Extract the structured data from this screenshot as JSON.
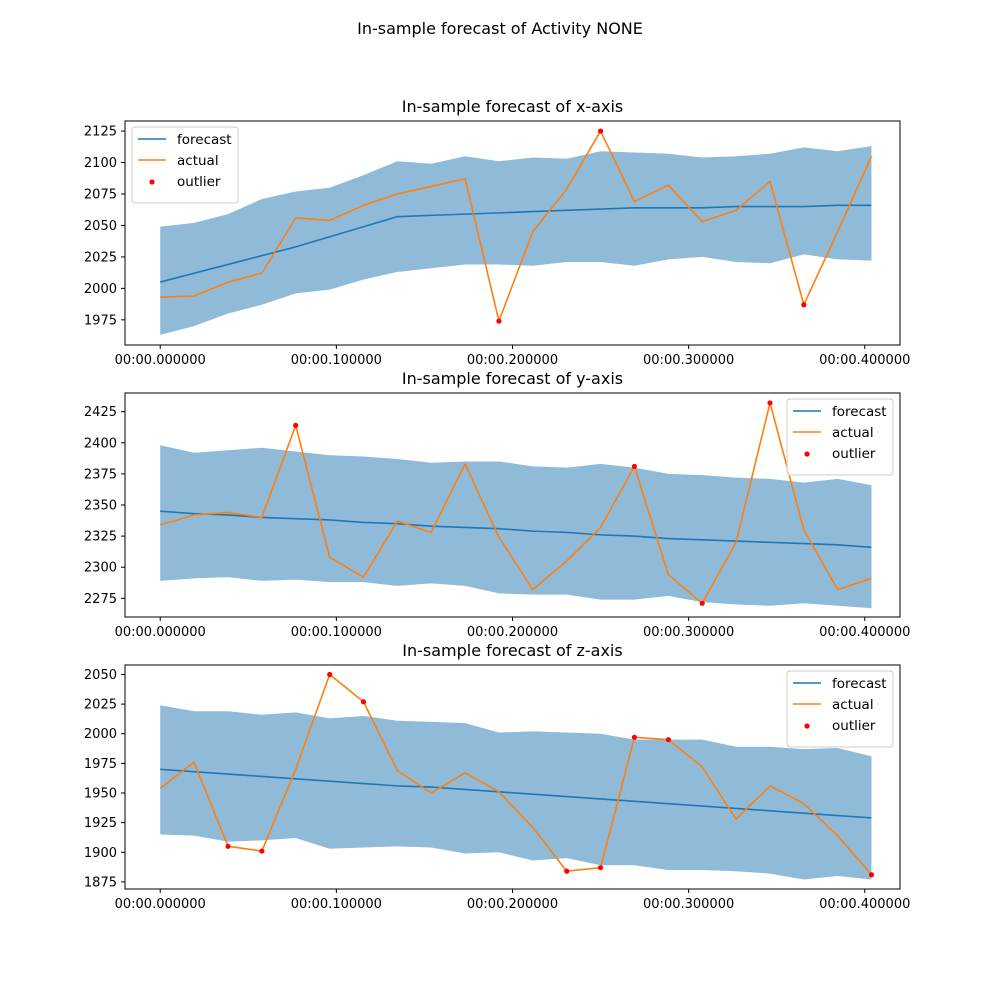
{
  "figure": {
    "title": "In-sample forecast of Activity NONE"
  },
  "colors": {
    "forecast": "#1f77b4",
    "actual": "#ff7f0e",
    "band": "#1f77b4",
    "outlier": "#ff0000"
  },
  "chart_data": [
    {
      "type": "line",
      "title": "In-sample forecast of x-axis",
      "xlabel": "",
      "ylabel": "",
      "legend": "top-left",
      "grid": false,
      "xlim": [
        -0.02,
        0.42
      ],
      "ylim": [
        1955,
        2133
      ],
      "xticks": [
        0.0,
        0.1,
        0.2,
        0.3,
        0.4
      ],
      "xtick_labels": [
        "00:00.000000",
        "00:00.100000",
        "00:00.200000",
        "00:00.300000",
        "00:00.400000"
      ],
      "yticks": [
        1975,
        2000,
        2025,
        2050,
        2075,
        2100,
        2125
      ],
      "ytick_labels": [
        "1975",
        "2000",
        "2025",
        "2050",
        "2075",
        "2100",
        "2125"
      ],
      "x": [
        0.0,
        0.0192,
        0.0385,
        0.0577,
        0.0769,
        0.0962,
        0.1154,
        0.1346,
        0.1538,
        0.1731,
        0.1923,
        0.2115,
        0.2308,
        0.25,
        0.2692,
        0.2885,
        0.3077,
        0.3269,
        0.3462,
        0.3654,
        0.3846,
        0.4038
      ],
      "series": [
        {
          "name": "forecast",
          "kind": "line",
          "values": [
            2005,
            2012,
            2019,
            2026,
            2033,
            2041,
            2049,
            2057,
            2058,
            2059,
            2060,
            2061,
            2062,
            2063,
            2064,
            2064,
            2064,
            2065,
            2065,
            2065,
            2066,
            2066
          ]
        },
        {
          "name": "actual",
          "kind": "line",
          "values": [
            1993,
            1994,
            2005,
            2012,
            2056,
            2054,
            2066,
            2075,
            2081,
            2087,
            1974,
            2045,
            2079,
            2125,
            2069,
            2082,
            2053,
            2062,
            2085,
            1987,
            2045,
            2105
          ]
        },
        {
          "name": "outlier",
          "kind": "scatter",
          "x": [
            0.1923,
            0.25,
            0.3654
          ],
          "values": [
            1974,
            2125,
            1987
          ]
        }
      ],
      "band": {
        "lower": [
          1963,
          1970,
          1980,
          1987,
          1996,
          1999,
          2007,
          2013,
          2016,
          2019,
          2019,
          2018,
          2021,
          2021,
          2018,
          2023,
          2025,
          2021,
          2020,
          2027,
          2023,
          2022
        ],
        "upper": [
          2049,
          2052,
          2059,
          2071,
          2077,
          2080,
          2090,
          2101,
          2099,
          2105,
          2101,
          2104,
          2103,
          2109,
          2108,
          2107,
          2104,
          2105,
          2107,
          2112,
          2109,
          2113
        ]
      }
    },
    {
      "type": "line",
      "title": "In-sample forecast of y-axis",
      "xlabel": "",
      "ylabel": "",
      "legend": "top-right",
      "grid": false,
      "xlim": [
        -0.02,
        0.42
      ],
      "ylim": [
        2260,
        2440
      ],
      "xticks": [
        0.0,
        0.1,
        0.2,
        0.3,
        0.4
      ],
      "xtick_labels": [
        "00:00.000000",
        "00:00.100000",
        "00:00.200000",
        "00:00.300000",
        "00:00.400000"
      ],
      "yticks": [
        2275,
        2300,
        2325,
        2350,
        2375,
        2400,
        2425
      ],
      "ytick_labels": [
        "2275",
        "2300",
        "2325",
        "2350",
        "2375",
        "2400",
        "2425"
      ],
      "x": [
        0.0,
        0.0192,
        0.0385,
        0.0577,
        0.0769,
        0.0962,
        0.1154,
        0.1346,
        0.1538,
        0.1731,
        0.1923,
        0.2115,
        0.2308,
        0.25,
        0.2692,
        0.2885,
        0.3077,
        0.3269,
        0.3462,
        0.3654,
        0.3846,
        0.4038
      ],
      "series": [
        {
          "name": "forecast",
          "kind": "line",
          "values": [
            2345,
            2343,
            2342,
            2340,
            2339,
            2338,
            2336,
            2335,
            2333,
            2332,
            2331,
            2329,
            2328,
            2326,
            2325,
            2323,
            2322,
            2321,
            2320,
            2319,
            2318,
            2316
          ]
        },
        {
          "name": "actual",
          "kind": "line",
          "values": [
            2334,
            2342,
            2344,
            2340,
            2414,
            2308,
            2292,
            2337,
            2328,
            2383,
            2324,
            2282,
            2305,
            2332,
            2381,
            2294,
            2271,
            2320,
            2432,
            2330,
            2282,
            2291
          ]
        },
        {
          "name": "outlier",
          "kind": "scatter",
          "x": [
            0.0769,
            0.2692,
            0.3077,
            0.3462
          ],
          "values": [
            2414,
            2381,
            2271,
            2432
          ]
        }
      ],
      "band": {
        "lower": [
          2289,
          2291,
          2292,
          2289,
          2290,
          2288,
          2288,
          2285,
          2287,
          2285,
          2279,
          2278,
          2278,
          2274,
          2274,
          2277,
          2272,
          2270,
          2269,
          2271,
          2269,
          2267
        ],
        "upper": [
          2398,
          2392,
          2394,
          2396,
          2393,
          2390,
          2389,
          2387,
          2384,
          2385,
          2385,
          2381,
          2380,
          2383,
          2380,
          2375,
          2374,
          2372,
          2371,
          2368,
          2371,
          2366
        ]
      }
    },
    {
      "type": "line",
      "title": "In-sample forecast of z-axis",
      "xlabel": "",
      "ylabel": "",
      "legend": "top-right",
      "grid": false,
      "xlim": [
        -0.02,
        0.42
      ],
      "ylim": [
        1869,
        2058
      ],
      "xticks": [
        0.0,
        0.1,
        0.2,
        0.3,
        0.4
      ],
      "xtick_labels": [
        "00:00.000000",
        "00:00.100000",
        "00:00.200000",
        "00:00.300000",
        "00:00.400000"
      ],
      "yticks": [
        1875,
        1900,
        1925,
        1950,
        1975,
        2000,
        2025,
        2050
      ],
      "ytick_labels": [
        "1875",
        "1900",
        "1925",
        "1950",
        "1975",
        "2000",
        "2025",
        "2050"
      ],
      "x": [
        0.0,
        0.0192,
        0.0385,
        0.0577,
        0.0769,
        0.0962,
        0.1154,
        0.1346,
        0.1538,
        0.1731,
        0.1923,
        0.2115,
        0.2308,
        0.25,
        0.2692,
        0.2885,
        0.3077,
        0.3269,
        0.3462,
        0.3654,
        0.3846,
        0.4038
      ],
      "series": [
        {
          "name": "forecast",
          "kind": "line",
          "values": [
            1970,
            1968,
            1966,
            1964,
            1962,
            1960,
            1958,
            1956,
            1955,
            1953,
            1951,
            1949,
            1947,
            1945,
            1943,
            1941,
            1939,
            1937,
            1935,
            1933,
            1931,
            1929
          ]
        },
        {
          "name": "actual",
          "kind": "line",
          "values": [
            1954,
            1976,
            1905,
            1901,
            1970,
            2050,
            2027,
            1969,
            1950,
            1967,
            1951,
            1921,
            1884,
            1887,
            1997,
            1995,
            1972,
            1928,
            1956,
            1941,
            1914,
            1881
          ]
        },
        {
          "name": "outlier",
          "kind": "scatter",
          "x": [
            0.0385,
            0.0577,
            0.0962,
            0.1154,
            0.2308,
            0.25,
            0.2692,
            0.2885,
            0.4038
          ],
          "values": [
            1905,
            1901,
            2050,
            2027,
            1884,
            1887,
            1997,
            1995,
            1881
          ]
        }
      ],
      "band": {
        "lower": [
          1915,
          1914,
          1909,
          1910,
          1912,
          1903,
          1904,
          1905,
          1904,
          1899,
          1900,
          1893,
          1895,
          1889,
          1889,
          1885,
          1885,
          1884,
          1882,
          1877,
          1880,
          1877
        ],
        "upper": [
          2024,
          2019,
          2019,
          2016,
          2018,
          2013,
          2015,
          2011,
          2010,
          2009,
          2001,
          2002,
          2001,
          2000,
          1995,
          1995,
          1995,
          1989,
          1989,
          1987,
          1988,
          1981
        ]
      }
    }
  ]
}
